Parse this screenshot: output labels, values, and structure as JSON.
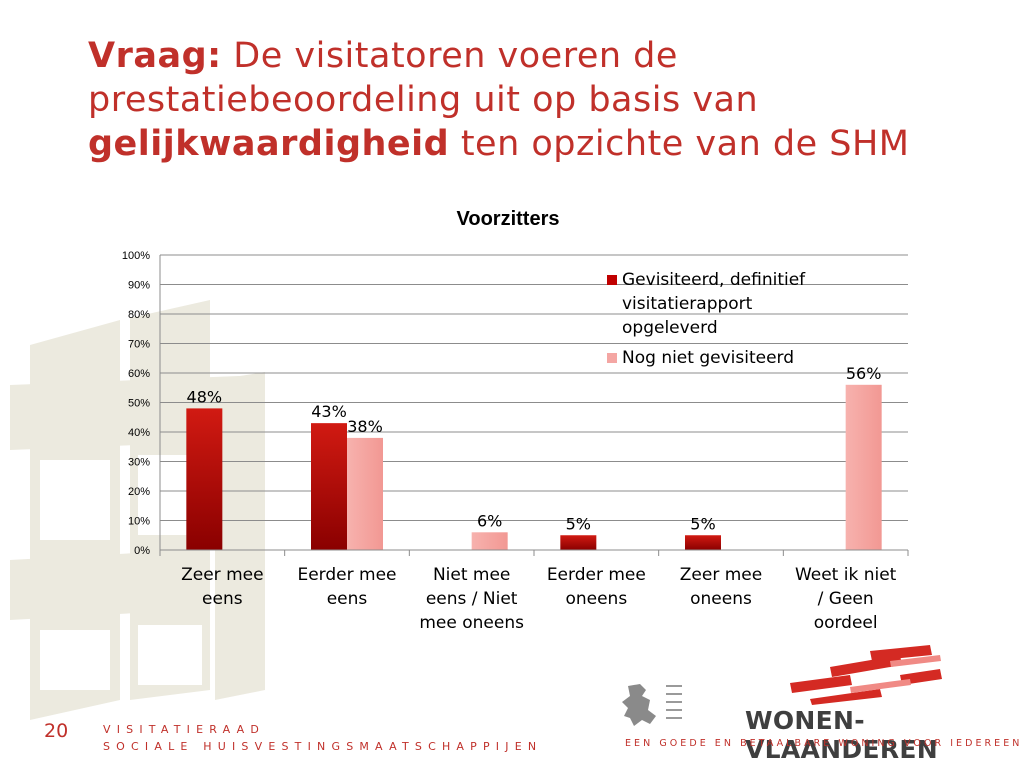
{
  "slide": {
    "title_prefix": "Vraag:",
    "title_part1": " De visitatoren voeren de prestatiebeoordeling uit op basis van ",
    "title_bold": "gelijkwaardigheid",
    "title_part2": " ten opzichte van de SHM",
    "page_number": "20",
    "footer_line1": "VISITATIERAAD",
    "footer_line2": "SOCIALE HUISVESTINGSMAATSCHAPPIJEN",
    "logo_name": "WONEN-VLAANDEREN",
    "logo_tagline": "EEN GOEDE EN BETAALBARE WONING VOOR IEDEREEN",
    "accent_color": "#c0302a"
  },
  "chart_data": {
    "type": "bar",
    "title": "Voorzitters",
    "categories": [
      [
        "Zeer mee",
        "eens"
      ],
      [
        "Eerder mee",
        "eens"
      ],
      [
        "Niet mee",
        "eens / Niet",
        "mee oneens"
      ],
      [
        "Eerder mee",
        "oneens"
      ],
      [
        "Zeer mee",
        "oneens"
      ],
      [
        "Weet ik niet",
        "/ Geen",
        "oordeel"
      ]
    ],
    "series": [
      {
        "name": [
          "Gevisiteerd, definitief",
          "visitatierapport",
          "opgeleverd"
        ],
        "values": [
          48,
          43,
          null,
          5,
          5,
          null
        ],
        "labels": [
          "48%",
          "43%",
          "",
          "5%",
          "5%",
          ""
        ],
        "color": "#c00000"
      },
      {
        "name": [
          "Nog niet gevisiteerd"
        ],
        "values": [
          null,
          38,
          6,
          null,
          null,
          56
        ],
        "labels": [
          "",
          "38%",
          "6%",
          "",
          "",
          "56%"
        ],
        "color": "#f4a6a3"
      }
    ],
    "yticks": [
      "0%",
      "10%",
      "20%",
      "30%",
      "40%",
      "50%",
      "60%",
      "70%",
      "80%",
      "90%",
      "100%"
    ],
    "ylim": [
      0,
      100
    ],
    "grid": true,
    "legend_position": "top-right"
  }
}
